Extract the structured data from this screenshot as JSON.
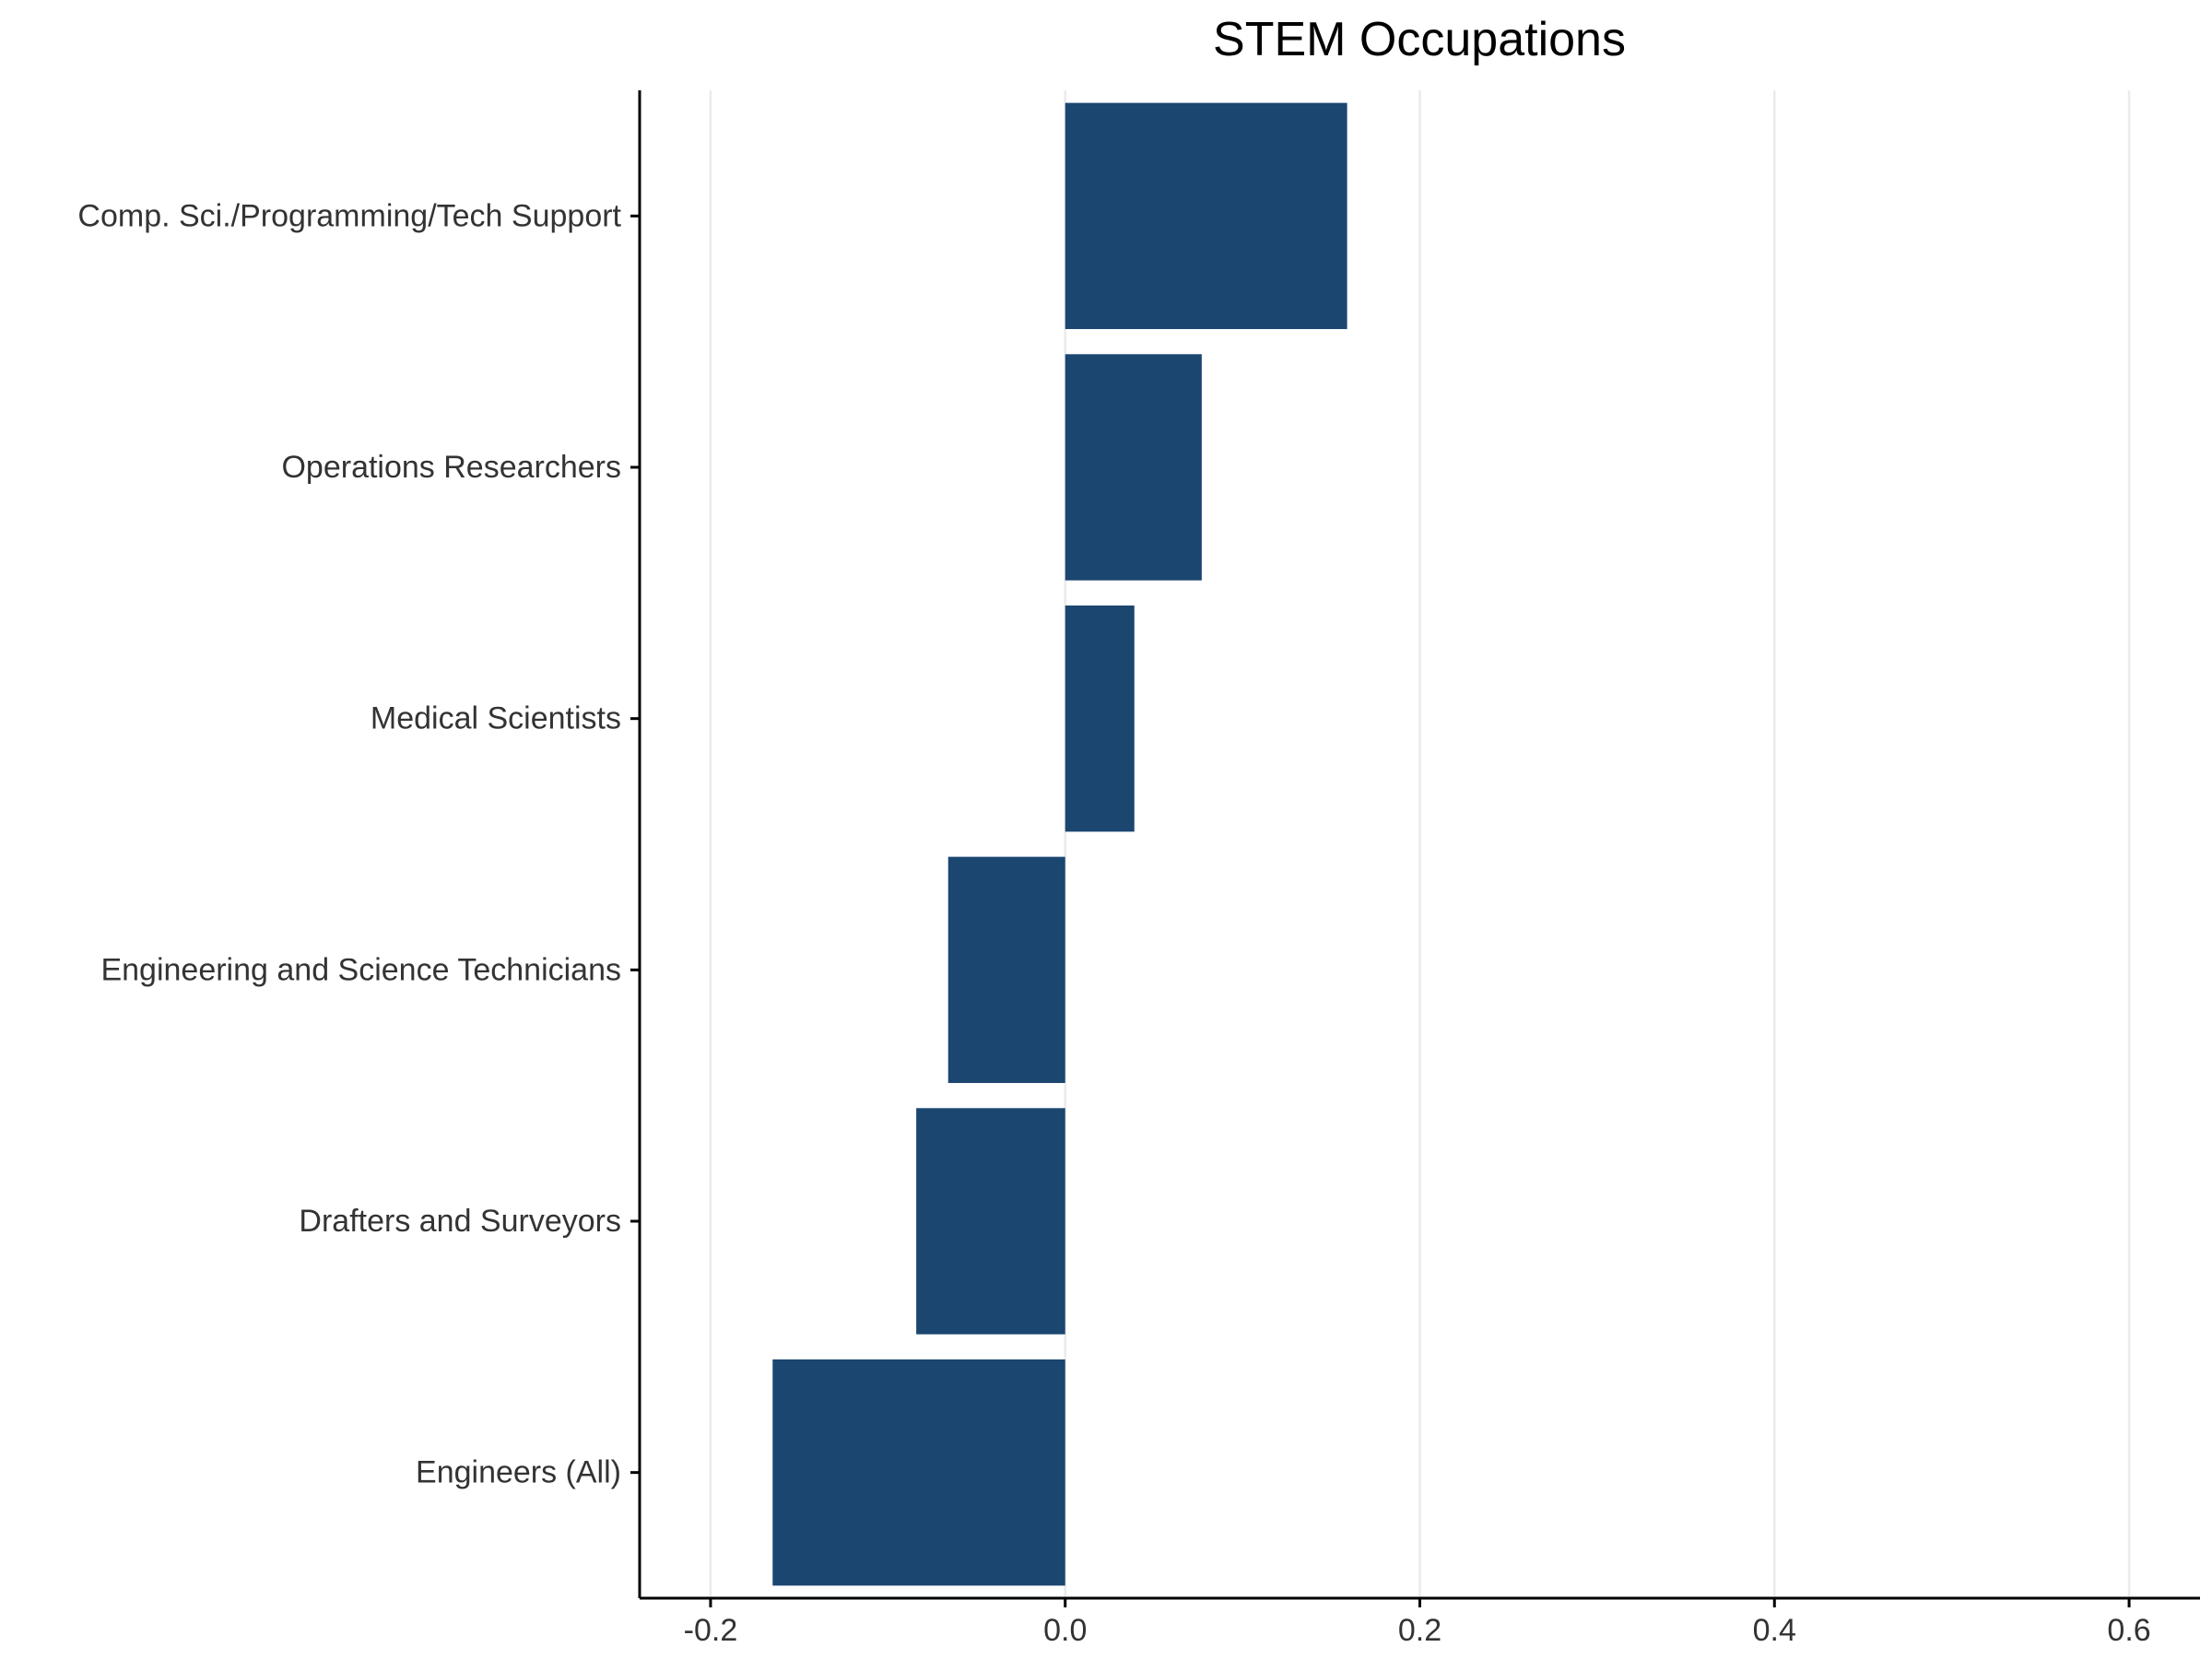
{
  "chart_data": {
    "type": "bar",
    "orientation": "horizontal",
    "title": "STEM Occupations",
    "xlabel": "",
    "ylabel": "",
    "categories": [
      "Comp. Sci./Programming/Tech Support",
      "Operations Researchers",
      "Medical Scientists",
      "Engineering and Science Technicians",
      "Drafters and Surveyors",
      "Engineers (All)"
    ],
    "values": [
      0.159,
      0.077,
      0.039,
      -0.066,
      -0.084,
      -0.165
    ],
    "xlim": [
      -0.24,
      0.64
    ],
    "x_ticks": [
      -0.2,
      0.0,
      0.2,
      0.4,
      0.6
    ],
    "x_tick_labels": [
      "-0.2",
      "0.0",
      "0.2",
      "0.4",
      "0.6"
    ],
    "grid": "vertical-major",
    "legend": "none",
    "colors": {
      "bar": "#1b4670",
      "grid": "#ebebeb",
      "axis": "#000000"
    }
  }
}
